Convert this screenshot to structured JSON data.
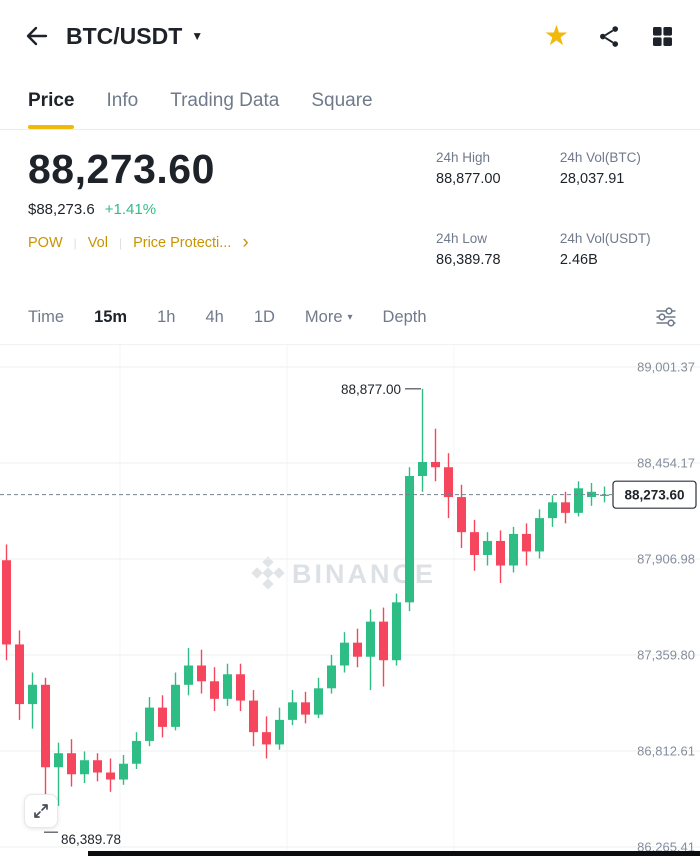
{
  "colors": {
    "green": "#2EBD85",
    "red": "#F6465D",
    "accent_yellow": "#F0B90B",
    "link_yellow": "#C99400",
    "text_dark": "#1E2329",
    "text_gray": "#707A8A",
    "grid_line": "#EEF0F2"
  },
  "glyphs": {
    "star": "★",
    "caret_down": "▼",
    "caret_down_small": "▾",
    "chevron_right": "›",
    "divider": "|"
  },
  "icons": {
    "back": "arrow-left",
    "favorite": "star",
    "share": "share",
    "apps": "grid",
    "indicator": "tune-sliders",
    "expand": "expand-arrows"
  },
  "header": {
    "title": "BTC/USDT"
  },
  "tabs": [
    {
      "label": "Price",
      "active": true
    },
    {
      "label": "Info",
      "active": false
    },
    {
      "label": "Trading Data",
      "active": false
    },
    {
      "label": "Square",
      "active": false
    }
  ],
  "ticker": {
    "last_price": "88,273.60",
    "fiat_value": "$88,273.6",
    "change_pct": "+1.41%",
    "tag_pow": "POW",
    "tag_vol": "Vol",
    "tag_protection": "Price Protecti...",
    "stats": [
      {
        "label": "24h High",
        "value": "88,877.00"
      },
      {
        "label": "24h Vol(BTC)",
        "value": "28,037.91"
      },
      {
        "label": "24h Low",
        "value": "86,389.78"
      },
      {
        "label": "24h Vol(USDT)",
        "value": "2.46B"
      }
    ]
  },
  "interval_bar": {
    "items": [
      {
        "label": "Time",
        "active": false
      },
      {
        "label": "15m",
        "active": true
      },
      {
        "label": "1h",
        "active": false
      },
      {
        "label": "4h",
        "active": false
      },
      {
        "label": "1D",
        "active": false
      },
      {
        "label": "More",
        "active": false
      },
      {
        "label": "Depth",
        "active": false
      }
    ]
  },
  "chart_data": {
    "type": "candlestick",
    "pair": "BTC/USDT",
    "interval": "15m",
    "watermark": "BINANCE",
    "y_axis_labels": [
      "89,001.37",
      "88,454.17",
      "87,906.98",
      "87,359.80",
      "86,812.61",
      "86,265.41"
    ],
    "price_at_top_gridline": 89001.37,
    "price_per_gridline_step": 547.192,
    "v_gridlines_x": [
      120,
      287,
      454
    ],
    "high_annotation": {
      "price": 88877.0,
      "label": "88,877.00"
    },
    "low_annotation": {
      "price": 86389.78,
      "label": "86,389.78"
    },
    "last_price": {
      "price": 88273.6,
      "label": "88,273.60"
    },
    "candle_format": "[open, high, low, close]",
    "candles": [
      [
        87900,
        87990,
        87330,
        87420
      ],
      [
        87420,
        87500,
        86990,
        87080
      ],
      [
        87080,
        87260,
        86940,
        87190
      ],
      [
        87190,
        87230,
        86389.78,
        86720
      ],
      [
        86720,
        86860,
        86500,
        86800
      ],
      [
        86800,
        86880,
        86610,
        86680
      ],
      [
        86680,
        86810,
        86630,
        86760
      ],
      [
        86760,
        86800,
        86640,
        86690
      ],
      [
        86690,
        86770,
        86580,
        86650
      ],
      [
        86650,
        86790,
        86620,
        86740
      ],
      [
        86740,
        86920,
        86710,
        86870
      ],
      [
        86870,
        87120,
        86840,
        87060
      ],
      [
        87060,
        87130,
        86890,
        86950
      ],
      [
        86950,
        87260,
        86930,
        87190
      ],
      [
        87190,
        87400,
        87130,
        87300
      ],
      [
        87300,
        87390,
        87140,
        87210
      ],
      [
        87210,
        87290,
        87040,
        87110
      ],
      [
        87110,
        87310,
        87070,
        87250
      ],
      [
        87250,
        87310,
        87040,
        87100
      ],
      [
        87100,
        87160,
        86840,
        86920
      ],
      [
        86920,
        87010,
        86770,
        86850
      ],
      [
        86850,
        87060,
        86820,
        86990
      ],
      [
        86990,
        87160,
        86960,
        87090
      ],
      [
        87090,
        87150,
        86970,
        87020
      ],
      [
        87020,
        87230,
        87000,
        87170
      ],
      [
        87170,
        87360,
        87140,
        87300
      ],
      [
        87300,
        87490,
        87260,
        87430
      ],
      [
        87430,
        87510,
        87290,
        87350
      ],
      [
        87350,
        87620,
        87160,
        87550
      ],
      [
        87550,
        87630,
        87180,
        87330
      ],
      [
        87330,
        87710,
        87300,
        87660
      ],
      [
        87660,
        88430,
        87610,
        88380
      ],
      [
        88380,
        88877,
        88290,
        88460
      ],
      [
        88460,
        88650,
        88350,
        88430
      ],
      [
        88430,
        88510,
        88140,
        88260
      ],
      [
        88260,
        88330,
        87970,
        88060
      ],
      [
        88060,
        88130,
        87840,
        87930
      ],
      [
        87930,
        88060,
        87870,
        88010
      ],
      [
        88010,
        88070,
        87770,
        87870
      ],
      [
        87870,
        88090,
        87830,
        88050
      ],
      [
        88050,
        88110,
        87870,
        87950
      ],
      [
        87950,
        88190,
        87910,
        88140
      ],
      [
        88140,
        88270,
        88090,
        88230
      ],
      [
        88230,
        88290,
        88110,
        88170
      ],
      [
        88170,
        88350,
        88150,
        88310
      ],
      [
        88260,
        88340,
        88210,
        88290
      ],
      [
        88270,
        88320,
        88230,
        88273.6
      ]
    ]
  }
}
